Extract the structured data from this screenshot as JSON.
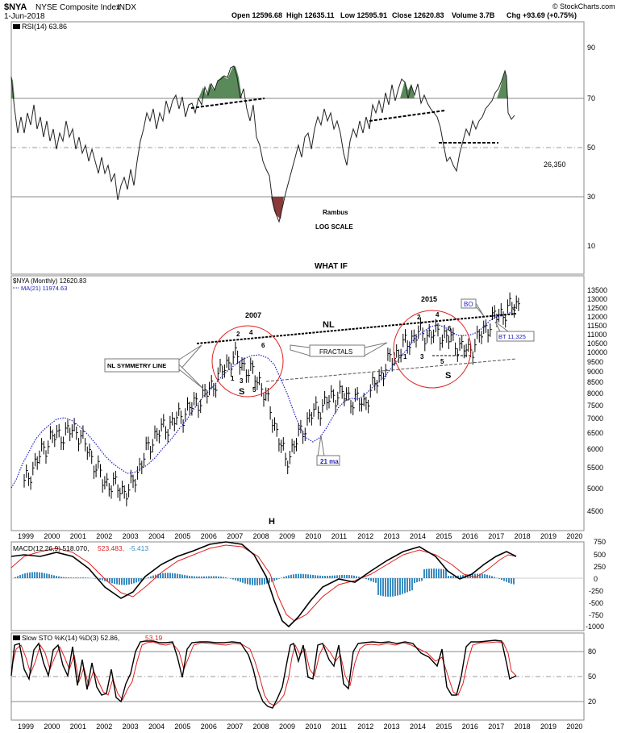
{
  "header": {
    "symbol": "$NYA",
    "name": "NYSE Composite Index",
    "exchange": "INDX",
    "date": "1-Jun-2018",
    "open": "Open 12596.68",
    "high": "High 12635.11",
    "low": "Low 12595.91",
    "close": "Close 12620.83",
    "volume": "Volume 3.7B",
    "chg": "Chg +93.69 (+0.75%)",
    "credit": "© StockCharts.com"
  },
  "rsi": {
    "label": "RSI(14) 63.86",
    "ticks": [
      "90",
      "70",
      "50",
      "30",
      "10"
    ],
    "side_value": "26,350",
    "note1": "Rambus",
    "note2": "LOG SCALE"
  },
  "price": {
    "title": "WHAT IF",
    "legend1": "$NYA (Monthly) 12620.83",
    "legend2": "MA(21) 11974.63",
    "ticks": [
      "13500",
      "13000",
      "12500",
      "12000",
      "11500",
      "11000",
      "10500",
      "10000",
      "9500",
      "9000",
      "8500",
      "8000",
      "7500",
      "7000",
      "6500",
      "6000",
      "5500",
      "5000",
      "4500"
    ],
    "annotations": {
      "y2007": "2007",
      "y2015": "2015",
      "nl": "NL",
      "fractals": "FRACTALS",
      "symmetry": "NL SYMMETRY LINE",
      "ma21": "21 ma",
      "bo": "BO",
      "bt": "BT 11,325",
      "h": "H",
      "s_left": "S",
      "s_right": "S",
      "n1": "1",
      "n2": "2",
      "n3": "3",
      "n4": "4",
      "n5": "5",
      "n6": "6"
    }
  },
  "macd": {
    "label": "MACD(12,26,9) 518.070,",
    "signal": "523.483,",
    "hist": "-5.413",
    "ticks": [
      "750",
      "500",
      "250",
      "0",
      "-250",
      "-500",
      "-750",
      "-1000"
    ]
  },
  "sto": {
    "label": "Slow STO %K(14) %D(3) 52.86,",
    "d": "53.19",
    "ticks": [
      "80",
      "50",
      "20"
    ]
  },
  "xaxis": [
    "1999",
    "2000",
    "2001",
    "2002",
    "2003",
    "2004",
    "2005",
    "2006",
    "2007",
    "2008",
    "2009",
    "2010",
    "2011",
    "2012",
    "2013",
    "2014",
    "2015",
    "2016",
    "2017",
    "2018",
    "2019",
    "2020"
  ],
  "colors": {
    "grid": "#b0b0b0",
    "line": "#000000",
    "rsi_fill_green": "#5a8a5a",
    "rsi_fill_red": "#8a3a3a",
    "ma": "#2020c0",
    "signal": "#e02020",
    "hist": "#3a8cc0",
    "circle": "#e02020"
  },
  "chart_data": {
    "type": "line",
    "title": "WHAT IF",
    "scale": "log",
    "x": [
      "1999",
      "2000",
      "2001",
      "2002",
      "2003",
      "2004",
      "2005",
      "2006",
      "2007",
      "2008",
      "2009",
      "2010",
      "2011",
      "2012",
      "2013",
      "2014",
      "2015",
      "2016",
      "2017",
      "2018"
    ],
    "series": [
      {
        "name": "$NYA (Monthly)",
        "values": [
          5200,
          6500,
          6800,
          5300,
          5000,
          6600,
          7250,
          8100,
          9700,
          8600,
          5800,
          7300,
          8100,
          7700,
          9500,
          10800,
          10800,
          9900,
          11700,
          12620
        ]
      },
      {
        "name": "MA(21)",
        "values": [
          5300,
          6000,
          6600,
          6300,
          5500,
          5900,
          6800,
          7600,
          8700,
          9300,
          7000,
          6700,
          7700,
          7900,
          8700,
          10100,
          10800,
          10600,
          11000,
          11975
        ]
      }
    ],
    "ylim": [
      4200,
      14000
    ]
  }
}
